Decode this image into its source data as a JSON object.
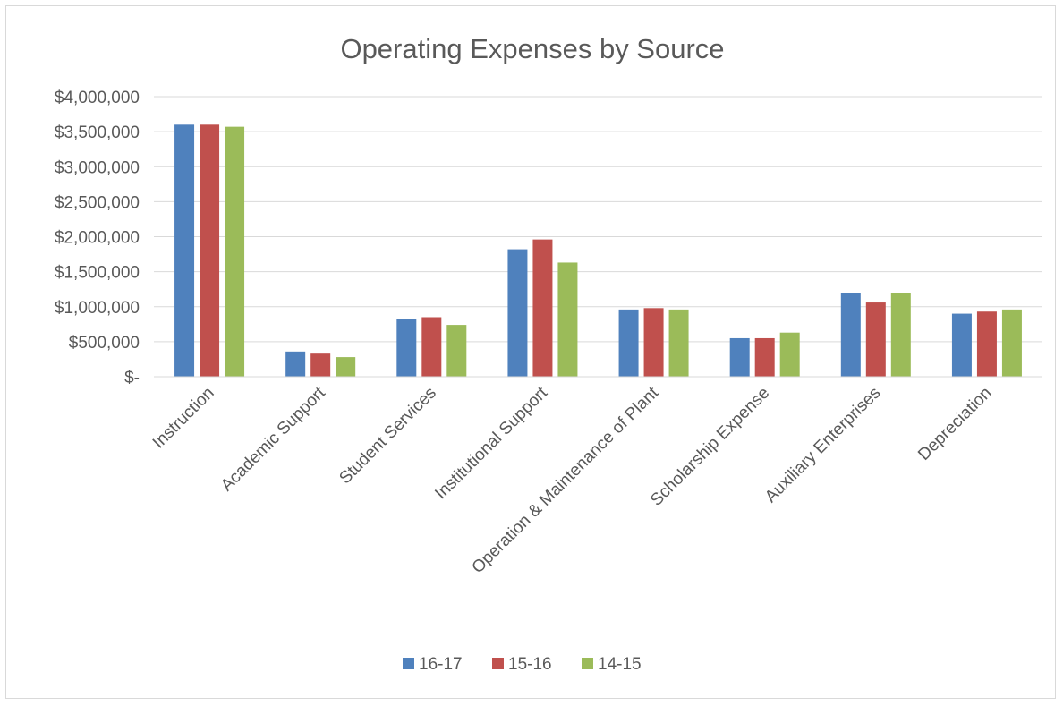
{
  "chart_data": {
    "type": "bar",
    "title": "Operating Expenses by Source",
    "xlabel": "",
    "ylabel": "",
    "ylim": [
      0,
      4000000
    ],
    "ytick_values": [
      0,
      500000,
      1000000,
      1500000,
      2000000,
      2500000,
      3000000,
      3500000,
      4000000
    ],
    "ytick_labels": [
      "$-",
      "$500,000",
      "$1,000,000",
      "$1,500,000",
      "$2,000,000",
      "$2,500,000",
      "$3,000,000",
      "$3,500,000",
      "$4,000,000"
    ],
    "grid": true,
    "legend_position": "bottom",
    "categories": [
      "Instruction",
      "Academic Support",
      "Student Services",
      "Institutional Support",
      "Operation & Maintenance of Plant",
      "Scholarship Expense",
      "Auxiliary Enterprises",
      "Depreciation"
    ],
    "series": [
      {
        "name": "16-17",
        "color": "#4f81bd",
        "values": [
          3600000,
          360000,
          820000,
          1820000,
          960000,
          550000,
          1200000,
          900000
        ]
      },
      {
        "name": "15-16",
        "color": "#c0504d",
        "values": [
          3600000,
          330000,
          850000,
          1960000,
          980000,
          550000,
          1060000,
          930000
        ]
      },
      {
        "name": "14-15",
        "color": "#9bbb59",
        "values": [
          3570000,
          280000,
          740000,
          1630000,
          960000,
          630000,
          1200000,
          960000
        ]
      }
    ]
  }
}
